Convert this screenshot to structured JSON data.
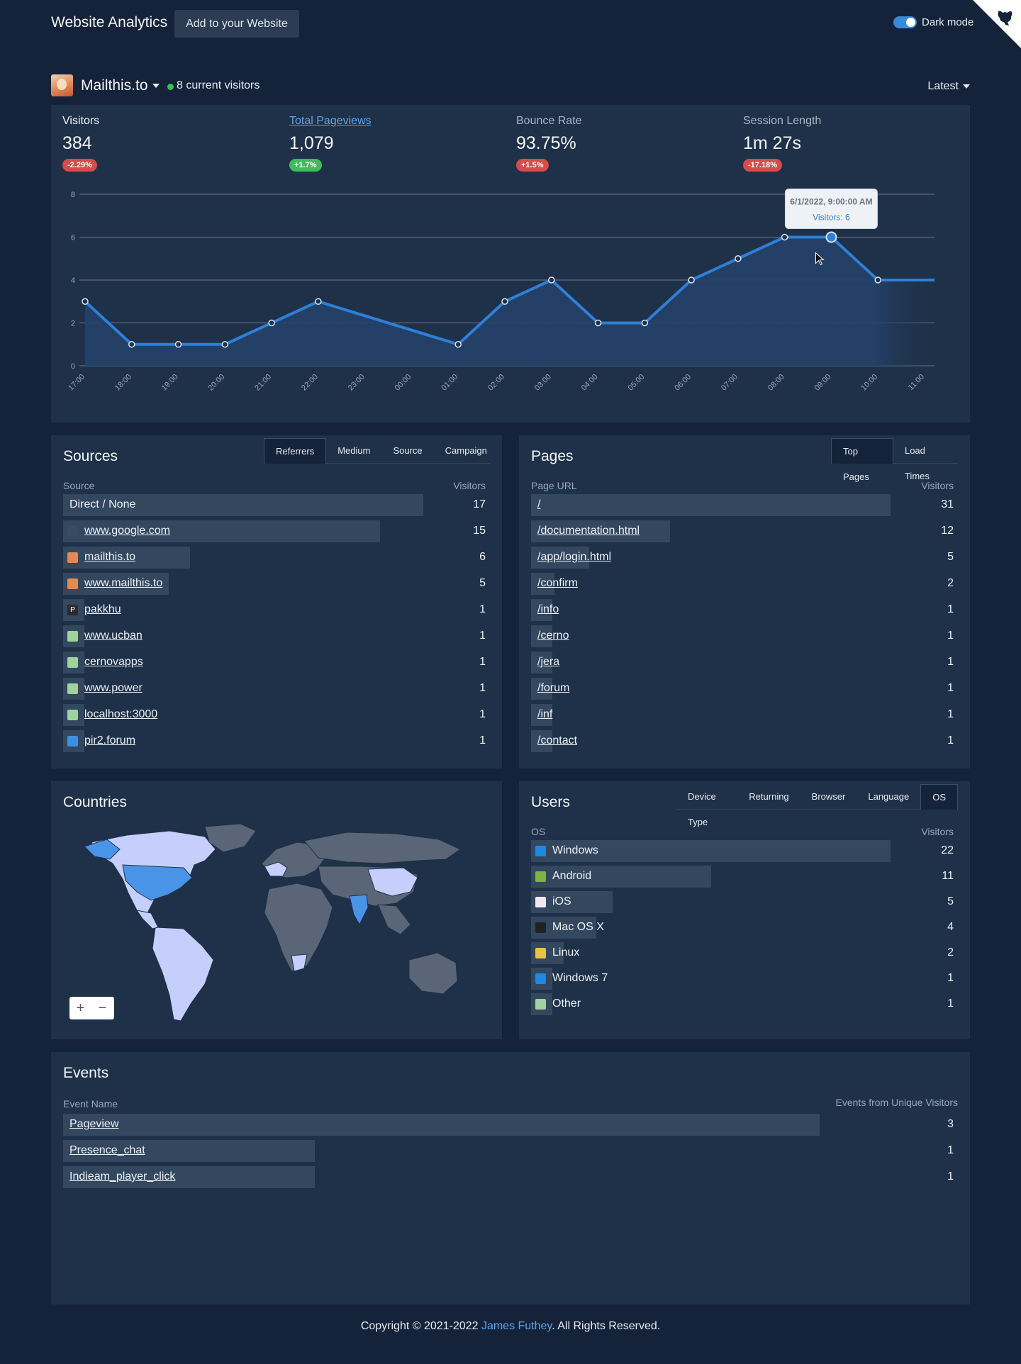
{
  "header": {
    "brand": "Website Analytics",
    "add_button": "Add to your Website",
    "dark_mode_label": "Dark mode"
  },
  "site": {
    "name": "Mailthis.to",
    "current_visitors": "8 current visitors",
    "range": "Latest"
  },
  "summary": {
    "kpis": [
      {
        "label": "Visitors",
        "value": "384",
        "change": "-2.29%"
      },
      {
        "label": "Total Pageviews",
        "value": "1,079",
        "change": "+1.7%"
      },
      {
        "label": "Bounce Rate",
        "value": "93.75%",
        "change": "+1.5%"
      },
      {
        "label": "Session Length",
        "value": "1m 27s",
        "change": "-17.18%"
      }
    ]
  },
  "chart_data": {
    "type": "area",
    "x": [
      "17:00",
      "18:00",
      "19:00",
      "20:00",
      "21:00",
      "22:00",
      "23:00",
      "00:00",
      "01:00",
      "02:00",
      "03:00",
      "04:00",
      "05:00",
      "06:00",
      "07:00",
      "08:00",
      "09:00",
      "10:00",
      "11:00"
    ],
    "series": [
      {
        "name": "Visitors",
        "values": [
          3,
          1,
          1,
          1,
          2,
          3,
          null,
          null,
          1,
          3,
          4,
          2,
          2,
          4,
          5,
          6,
          6,
          4,
          4
        ]
      }
    ],
    "yticks": [
      "0",
      "2",
      "4",
      "6",
      "8"
    ],
    "ylim": [
      0,
      8
    ],
    "grid": true,
    "tooltip": {
      "title": "6/1/2022, 9:00:00 AM",
      "text": "Visitors: 6"
    },
    "color": "#2f7fd6"
  },
  "sources": {
    "title": "Sources",
    "tabs": [
      "Referrers",
      "Medium",
      "Source",
      "Campaign"
    ],
    "col_left": "Source",
    "col_right": "Visitors",
    "rows": [
      {
        "label": "Direct / None",
        "value": "17",
        "icon": "",
        "ratio": 1.0
      },
      {
        "label": "www.google.com",
        "value": "15",
        "icon": "google-icon",
        "ratio": 0.88
      },
      {
        "label": "mailthis.to",
        "value": "6",
        "icon": "mailthis-icon",
        "ratio": 0.353
      },
      {
        "label": "www.mailthis.to",
        "value": "5",
        "icon": "mailthis-icon",
        "ratio": 0.294
      },
      {
        "label": "pakkhu",
        "value": "1",
        "icon": "pakkhu-icon",
        "ratio": 0.059
      },
      {
        "label": "www.ucban",
        "value": "1",
        "icon": "image-icon",
        "ratio": 0.059
      },
      {
        "label": "cernovapps",
        "value": "1",
        "icon": "image-icon",
        "ratio": 0.059
      },
      {
        "label": "www.power",
        "value": "1",
        "icon": "image-icon",
        "ratio": 0.059
      },
      {
        "label": "localhost:3000",
        "value": "1",
        "icon": "image-icon",
        "ratio": 0.059
      },
      {
        "label": "pir2.forum",
        "value": "1",
        "icon": "forum-icon",
        "ratio": 0.059
      }
    ]
  },
  "pages": {
    "title": "Pages",
    "tabs": [
      "Top Pages",
      "Load Times"
    ],
    "col_left": "Page URL",
    "col_right": "Visitors",
    "rows": [
      {
        "label": "/",
        "value": "31",
        "ratio": 1.0
      },
      {
        "label": "/documentation.html",
        "value": "12",
        "ratio": 0.387
      },
      {
        "label": "/app/login.html",
        "value": "5",
        "ratio": 0.161
      },
      {
        "label": "/confirm",
        "value": "2",
        "ratio": 0.065
      },
      {
        "label": "/info",
        "value": "1",
        "ratio": 0.032
      },
      {
        "label": "/cerno",
        "value": "1",
        "ratio": 0.032
      },
      {
        "label": "/jera",
        "value": "1",
        "ratio": 0.032
      },
      {
        "label": "/forum",
        "value": "1",
        "ratio": 0.032
      },
      {
        "label": "/inf",
        "value": "1",
        "ratio": 0.032
      },
      {
        "label": "/contact",
        "value": "1",
        "ratio": 0.032
      }
    ]
  },
  "countries": {
    "title": "Countries",
    "zoom_in": "+",
    "zoom_out": "−"
  },
  "users": {
    "title": "Users",
    "tabs": [
      "Device Type",
      "Returning",
      "Browser",
      "Language",
      "OS"
    ],
    "col_left": "OS",
    "col_right": "Visitors",
    "rows": [
      {
        "label": "Windows",
        "value": "22",
        "icon": "windows-icon",
        "ratio": 1.0
      },
      {
        "label": "Android",
        "value": "11",
        "icon": "android-icon",
        "ratio": 0.5
      },
      {
        "label": "iOS",
        "value": "5",
        "icon": "ios-icon",
        "ratio": 0.227
      },
      {
        "label": "Mac OS X",
        "value": "4",
        "icon": "apple-icon",
        "ratio": 0.182
      },
      {
        "label": "Linux",
        "value": "2",
        "icon": "linux-icon",
        "ratio": 0.091
      },
      {
        "label": "Windows 7",
        "value": "1",
        "icon": "windows-icon",
        "ratio": 0.045
      },
      {
        "label": "Other",
        "value": "1",
        "icon": "image-icon",
        "ratio": 0.045
      }
    ]
  },
  "events": {
    "title": "Events",
    "col_left": "Event Name",
    "col_right": "Events from Unique Visitors",
    "rows": [
      {
        "label": "Pageview",
        "value": "3",
        "ratio": 1.0
      },
      {
        "label": "Presence_chat",
        "value": "1",
        "ratio": 0.333
      },
      {
        "label": "Indieam_player_click",
        "value": "1",
        "ratio": 0.333
      }
    ]
  },
  "footer": {
    "copyright": "Copyright © 2021-2022",
    "author": "James Futhey",
    "rights": ". All Rights Reserved."
  }
}
